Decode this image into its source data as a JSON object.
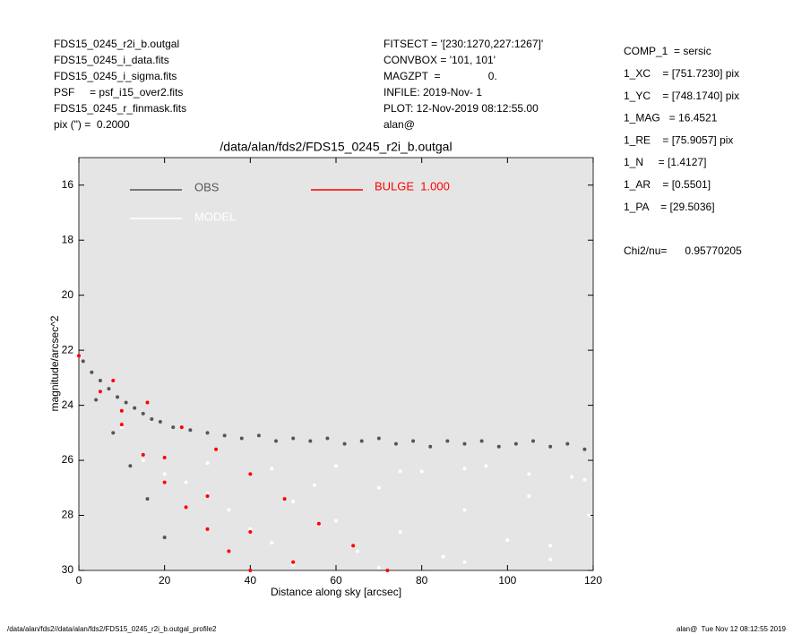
{
  "header": {
    "left": [
      "FDS15_0245_r2i_b.outgal",
      "FDS15_0245_i_data.fits",
      "FDS15_0245_i_sigma.fits",
      "PSF     = psf_i15_over2.fits",
      "FDS15_0245_r_finmask.fits",
      "pix (\") =  0.2000"
    ],
    "middle": [
      "FITSECT = '[230:1270,227:1267]'",
      "CONVBOX = '101, 101'",
      "MAGZPT  =                0.",
      "INFILE: 2019-Nov- 1",
      "PLOT: 12-Nov-2019 08:12:55.00",
      "alan@"
    ],
    "right": [
      "COMP_1  = sersic",
      "1_XC    = [751.7230] pix",
      "1_YC    = [748.1740] pix",
      "1_MAG   = 16.4521",
      "1_RE    = [75.9057] pix",
      "1_N     = [1.4127]",
      "1_AR    = [0.5501]",
      "1_PA    = [29.5036]"
    ],
    "chi2": "Chi2/nu=      0.95770205"
  },
  "footer": {
    "left": "/data/alan/fds2//data/alan/fds2/FDS15_0245_r2i_b.outgal_profile2",
    "right": "alan@  Tue Nov 12 08:12:55 2019"
  },
  "chart_data": {
    "type": "scatter",
    "title": "/data/alan/fds2/FDS15_0245_r2i_b.outgal",
    "x_label": "Distance along sky [arcsec]",
    "y_label": "magnitude/arcsec^2",
    "xlim": [
      0,
      120
    ],
    "xticks": [
      0,
      20,
      40,
      60,
      80,
      100,
      120
    ],
    "ylim": [
      30,
      15
    ],
    "yticks": [
      16,
      18,
      20,
      22,
      24,
      26,
      28,
      30
    ],
    "series": [
      {
        "name": "OBS",
        "color": "#555555",
        "x": [
          1,
          3,
          5,
          7,
          9,
          11,
          13,
          15,
          17,
          19,
          22,
          26,
          30,
          34,
          38,
          42,
          46,
          50,
          54,
          58,
          62,
          66,
          70,
          74,
          78,
          82,
          86,
          90,
          94,
          98,
          102,
          106,
          110,
          114,
          118,
          4,
          8,
          12,
          16,
          20
        ],
        "y": [
          22.4,
          22.8,
          23.1,
          23.4,
          23.7,
          23.9,
          24.1,
          24.3,
          24.5,
          24.6,
          24.8,
          24.9,
          25.0,
          25.1,
          25.2,
          25.1,
          25.3,
          25.2,
          25.3,
          25.2,
          25.4,
          25.3,
          25.2,
          25.4,
          25.3,
          25.5,
          25.3,
          25.4,
          25.3,
          25.5,
          25.4,
          25.3,
          25.5,
          25.4,
          25.6,
          23.8,
          25.0,
          26.2,
          27.4,
          28.8
        ]
      },
      {
        "name": "MODEL",
        "color": "#ffffff",
        "x": [
          5,
          10,
          15,
          20,
          25,
          30,
          35,
          40,
          45,
          50,
          55,
          60,
          65,
          70,
          75,
          80,
          85,
          90,
          95,
          100,
          105,
          110,
          115,
          119,
          30,
          45,
          60,
          75,
          90,
          105,
          118,
          50,
          70,
          90,
          110
        ],
        "y": [
          23.5,
          24.8,
          26.0,
          26.5,
          26.8,
          27.2,
          27.8,
          28.5,
          29.0,
          27.5,
          26.9,
          28.2,
          29.3,
          27.0,
          28.6,
          26.4,
          29.5,
          27.8,
          26.2,
          28.9,
          27.3,
          29.1,
          26.6,
          28.0,
          26.1,
          26.3,
          26.2,
          26.4,
          26.3,
          26.5,
          26.7,
          29.8,
          29.9,
          29.7,
          29.6
        ]
      },
      {
        "name": "BULGE  1.000",
        "color": "#ff0000",
        "x": [
          0,
          5,
          10,
          15,
          20,
          25,
          30,
          35,
          40,
          8,
          16,
          24,
          32,
          40,
          48,
          56,
          64,
          72,
          10,
          20,
          30,
          40,
          50
        ],
        "y": [
          22.2,
          23.5,
          24.7,
          25.8,
          26.8,
          27.7,
          28.5,
          29.3,
          30.0,
          23.1,
          23.9,
          24.8,
          25.6,
          26.5,
          27.4,
          28.3,
          29.1,
          30.0,
          24.2,
          25.9,
          27.3,
          28.6,
          29.7
        ]
      }
    ]
  }
}
